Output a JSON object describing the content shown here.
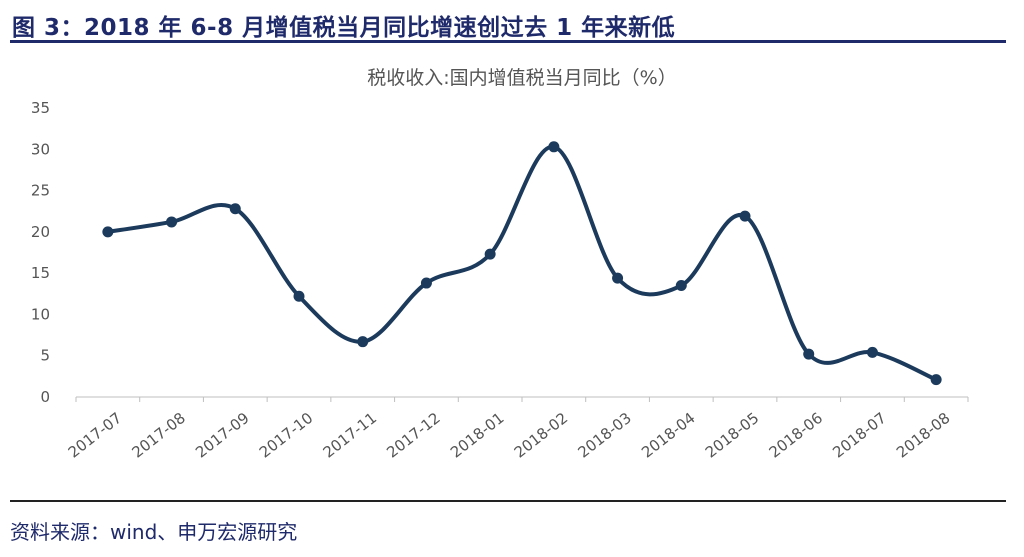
{
  "figure_title": "图 3：2018 年 6-8 月增值税当月同比增速创过去 1 年来新低",
  "source": "资料来源：wind、申万宏源研究",
  "colors": {
    "line": "#1b3a5c",
    "title": "#1f2a6b",
    "axis_text": "#555555"
  },
  "chart_data": {
    "type": "line",
    "title": "税收收入:国内增值税当月同比（%）",
    "xlabel": "",
    "ylabel": "",
    "ylim": [
      0,
      35
    ],
    "yticks": [
      "0",
      "5",
      "10",
      "15",
      "20",
      "25",
      "30",
      "35"
    ],
    "grid": false,
    "categories": [
      "2017-07",
      "2017-08",
      "2017-09",
      "2017-10",
      "2017-11",
      "2017-12",
      "2018-01",
      "2018-02",
      "2018-03",
      "2018-04",
      "2018-05",
      "2018-06",
      "2018-07",
      "2018-08"
    ],
    "series": [
      {
        "values": [
          20.0,
          21.2,
          22.8,
          12.2,
          6.7,
          13.8,
          17.3,
          30.3,
          14.4,
          13.5,
          21.9,
          5.2,
          5.4,
          2.1
        ]
      }
    ]
  }
}
